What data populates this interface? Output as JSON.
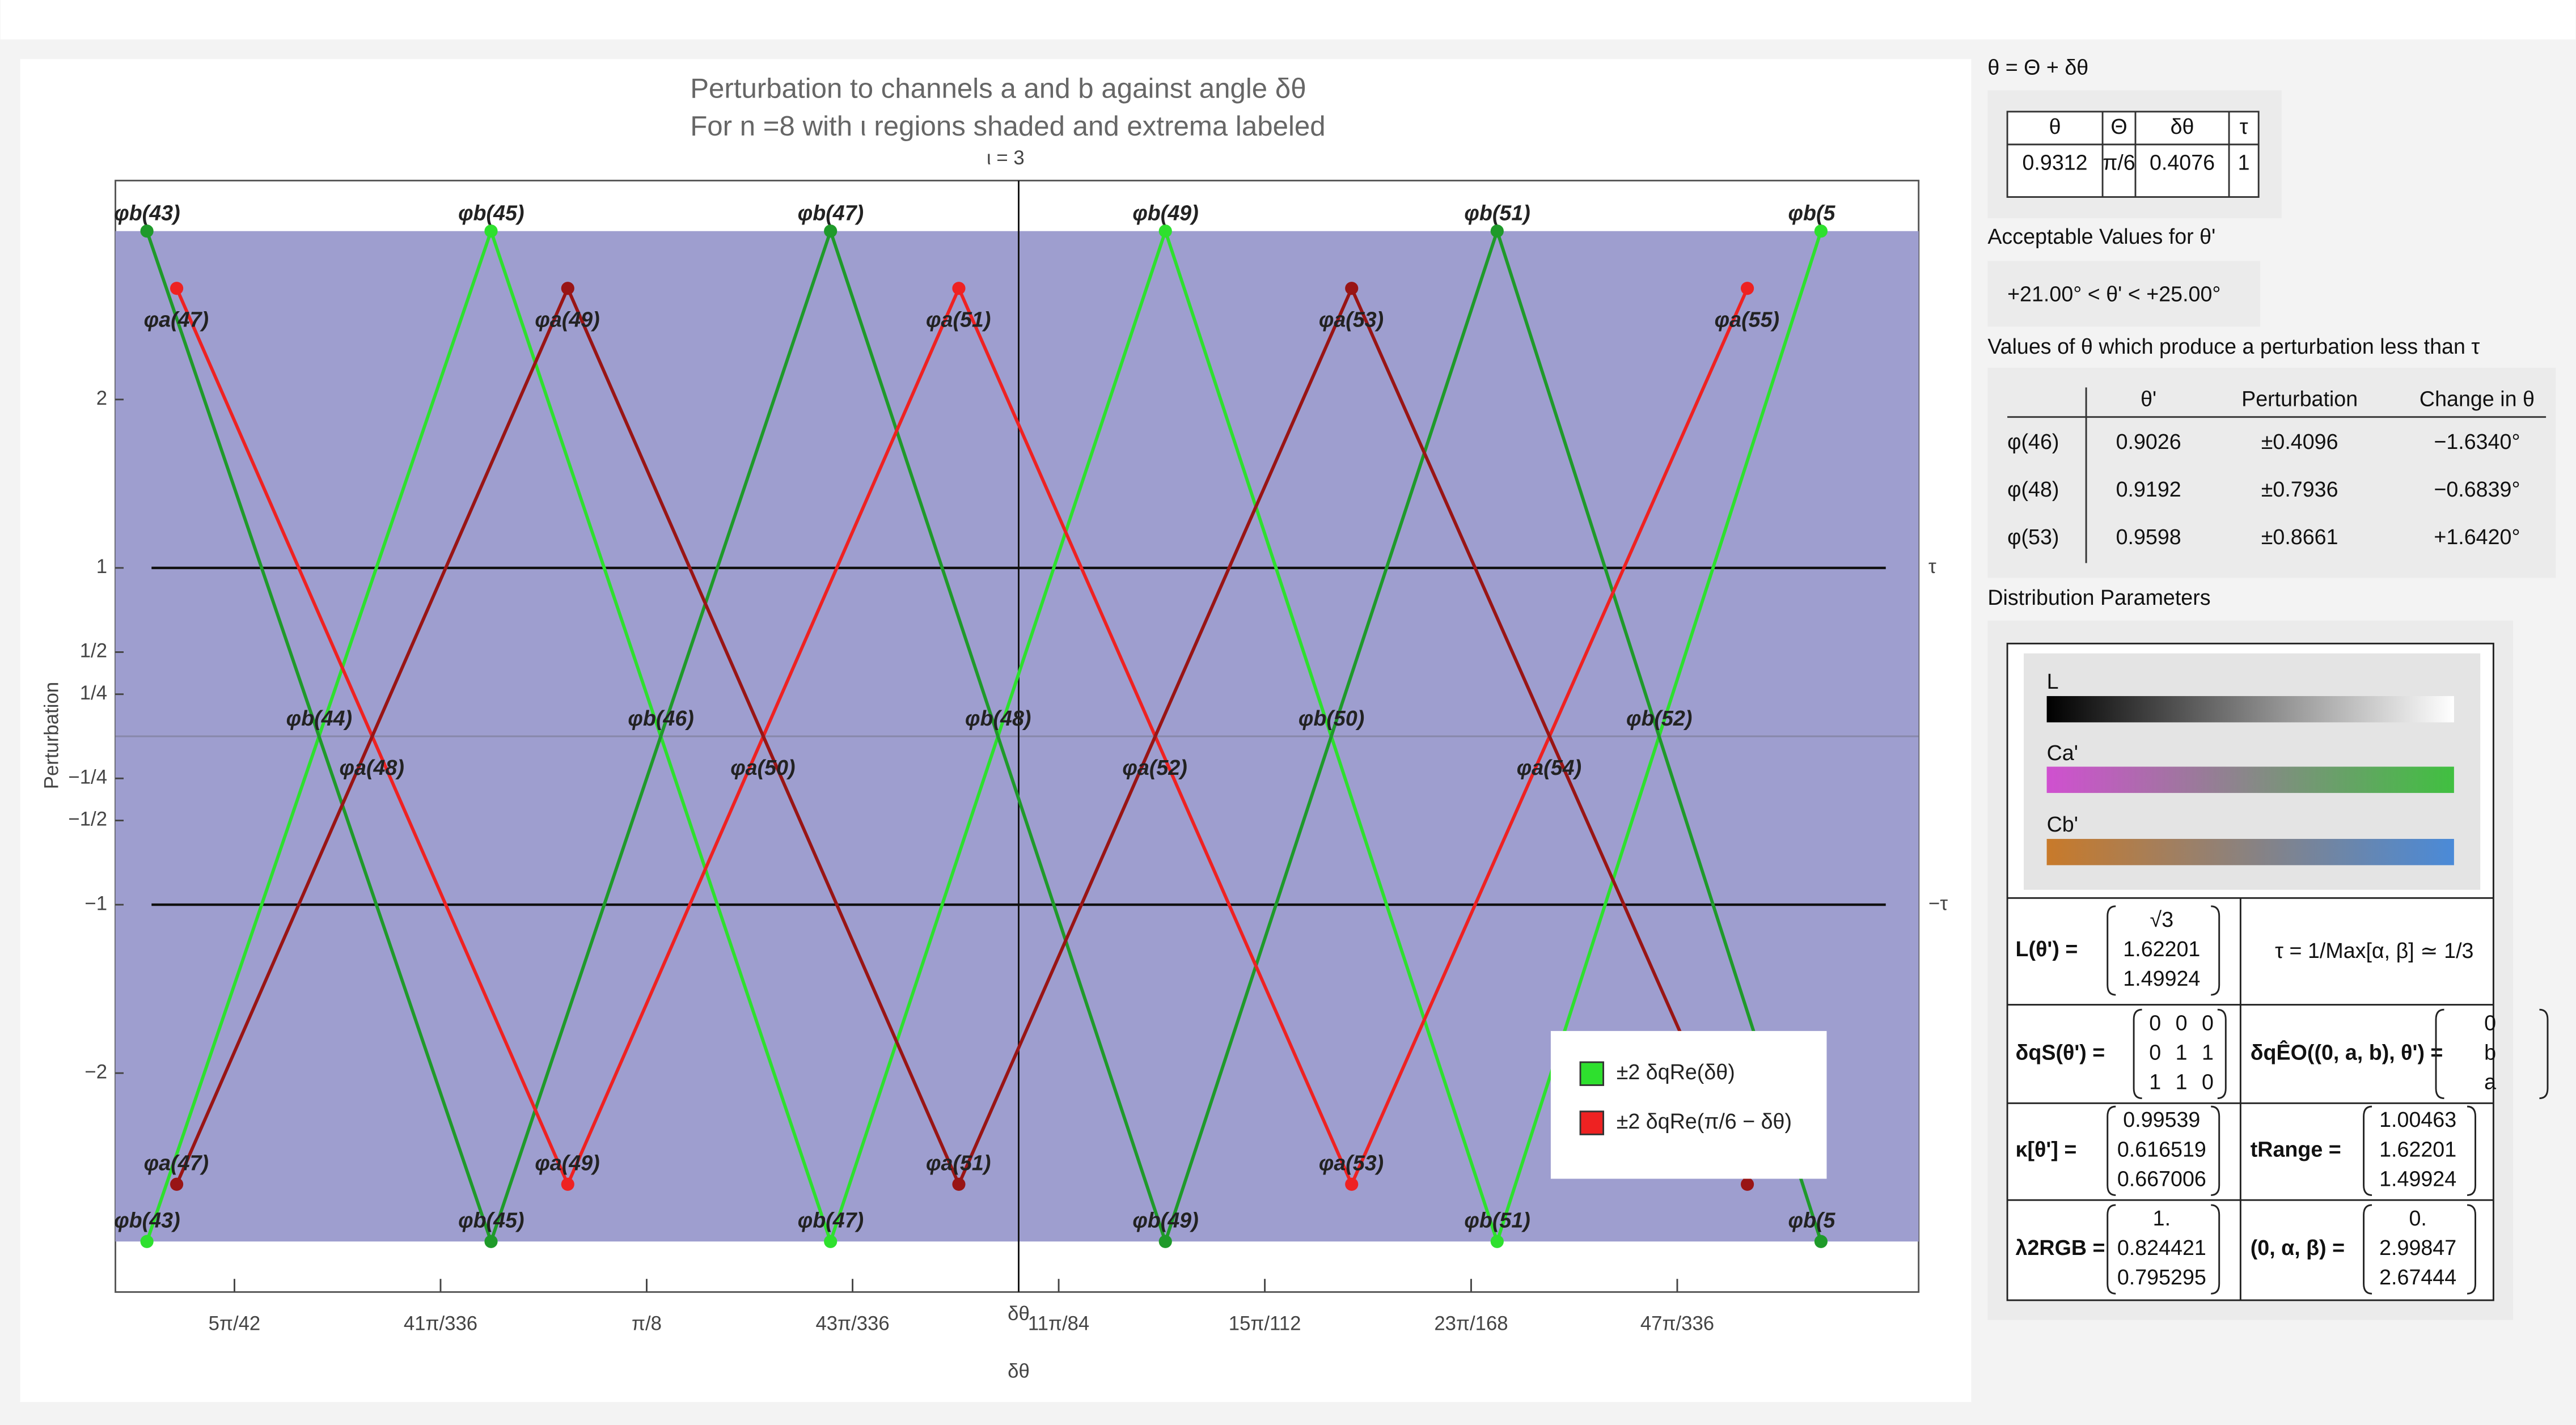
{
  "chart_data": {
    "type": "line",
    "title": "Perturbation to channels a and b against angle δθ",
    "subtitle": "For n =8  with ι regions shaded and extrema labeled",
    "region_label": "ι = 3",
    "y_label": "Perturbation",
    "x_label": "δθ",
    "axis_label": "δθ",
    "xlim": [
      0.3686,
      0.4504
    ],
    "ylim": [
      -3.3,
      3.3
    ],
    "xticks": [
      {
        "value": 0.374,
        "label": "5π/42"
      },
      {
        "value": 0.38335,
        "label": "41π/336"
      },
      {
        "value": 0.3927,
        "label": "π/8"
      },
      {
        "value": 0.40204,
        "label": "43π/336"
      },
      {
        "value": 0.41139,
        "label": "11π/84"
      },
      {
        "value": 0.42074,
        "label": "15π/112"
      },
      {
        "value": 0.4301,
        "label": "23π/168"
      },
      {
        "value": 0.43945,
        "label": "47π/336"
      }
    ],
    "yticks": [
      {
        "value": -2,
        "label": "−2"
      },
      {
        "value": -1,
        "label": "−1"
      },
      {
        "value": -0.5,
        "label": "−1/2"
      },
      {
        "value": -0.25,
        "label": "−1/4"
      },
      {
        "value": 0.25,
        "label": "1/4"
      },
      {
        "value": 0.5,
        "label": "1/2"
      },
      1,
      2
    ],
    "shaded_region": [
      -3,
      3
    ],
    "shade_color": "#9e9ecf",
    "tau_lines": [
      {
        "value": 1,
        "label": "τ"
      },
      {
        "value": -1,
        "label": "−τ"
      }
    ],
    "series": [
      {
        "name": "±2 δqRe(δθ)",
        "color": "#2ee02e",
        "mirror_color": "#1f9a2a",
        "x": [
          0.37003,
          0.38564,
          0.40104,
          0.41623,
          0.43128,
          0.44597
        ],
        "values": [
          -3,
          3,
          -3,
          3,
          -3,
          3
        ],
        "mirror_values": [
          3,
          -3,
          3,
          -3,
          3,
          -3
        ],
        "extrema_labels": [
          "φb(43)",
          "φb(45)",
          "φb(47)",
          "φb(49)",
          "φb(51)",
          "φb(5"
        ],
        "crossing_labels": [
          "φb(44)",
          "φb(46)",
          "φb(48)",
          "φb(50)",
          "φb(52)"
        ],
        "label_color": "#1a6a1a"
      },
      {
        "name": "±2 δqRe(π/6 − δθ)",
        "color": "#ee2222",
        "mirror_color": "#991515",
        "x": [
          0.37138,
          0.38912,
          0.40686,
          0.42468,
          0.44263
        ],
        "values": [
          2.66,
          -2.66,
          2.66,
          -2.66,
          2.66
        ],
        "mirror_values": [
          -2.66,
          2.66,
          -2.66,
          2.66,
          -2.66
        ],
        "extrema_labels": [
          "φa(47)",
          "φa(49)",
          "φa(51)",
          "φa(53)",
          "φa(55)"
        ],
        "crossing_labels": [
          "φa(48)",
          "φa(50)",
          "φa(52)",
          "φa(54)"
        ],
        "label_color": "#7a1010"
      }
    ]
  },
  "side_panel": {
    "definition": "θ = Θ + δθ",
    "theta_table": {
      "headers": [
        "θ",
        "Θ",
        "δθ",
        "τ"
      ],
      "row": [
        "0.9312",
        "π/6",
        "0.4076",
        "1"
      ]
    },
    "acceptable_title": "Acceptable Values for θ'",
    "acceptable_range": "+21.00° < θ' < +25.00°",
    "values_title": "Values of θ which produce a perturbation less than τ",
    "values_table": {
      "headers": [
        "θ'",
        "Perturbation",
        "Change in θ"
      ],
      "rows": [
        [
          "φ(46)",
          "0.9026",
          "±0.4096",
          "−1.6340°"
        ],
        [
          "φ(48)",
          "0.9192",
          "±0.7936",
          "−0.6839°"
        ],
        [
          "φ(53)",
          "0.9598",
          "±0.8661",
          "+1.6420°"
        ]
      ]
    },
    "distribution_title": "Distribution Parameters",
    "gradients": [
      "L",
      "Ca'",
      "Cb'"
    ],
    "tau_formula": "τ = 1/Max[α, β] ≃ 1/3",
    "matrices": [
      {
        "label": "L(θ') =",
        "rows": [
          [
            "√3"
          ],
          [
            "1.62201"
          ],
          [
            "1.49924"
          ]
        ]
      },
      {
        "label": "δqS(θ') =",
        "rows": [
          [
            "0",
            "0",
            "0"
          ],
          [
            "0",
            "1",
            "1"
          ],
          [
            "1",
            "1",
            "0"
          ]
        ]
      },
      {
        "label": "δqÊO((0, a, b), θ') =",
        "rows": [
          [
            "0"
          ],
          [
            "b"
          ],
          [
            "a"
          ]
        ]
      },
      {
        "label": "κ[θ'] =",
        "rows": [
          [
            "0.99539"
          ],
          [
            "0.616519"
          ],
          [
            "0.667006"
          ]
        ]
      },
      {
        "label": "tRange =",
        "rows": [
          [
            "1.00463"
          ],
          [
            "1.62201"
          ],
          [
            "1.49924"
          ]
        ]
      },
      {
        "label": "λ2RGB =",
        "rows": [
          [
            "1."
          ],
          [
            "0.824421"
          ],
          [
            "0.795295"
          ]
        ]
      },
      {
        "label": "(0, α, β) =",
        "rows": [
          [
            "0."
          ],
          [
            "2.99847"
          ],
          [
            "2.67444"
          ]
        ]
      }
    ]
  }
}
